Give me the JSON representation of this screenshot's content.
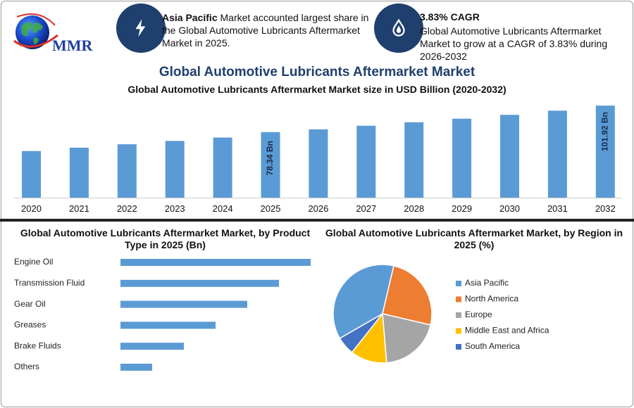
{
  "logo": {
    "text": "MMR"
  },
  "header": {
    "info1": {
      "highlight": "Asia Pacific",
      "rest": " Market accounted largest share in the Global Automotive Lubricants Aftermarket Market in 2025.",
      "icon": "lightning-icon"
    },
    "info2": {
      "title": "3.83% CAGR",
      "text": "Global Automotive Lubricants Aftermarket Market to grow at a CAGR of 3.83% during 2026-2032",
      "icon": "oil-drop-icon"
    }
  },
  "title": "Global Automotive Lubricants Aftermarket Market",
  "subtitle": "Global Automotive Lubricants Aftermarket Market size in USD Billion (2020-2032)",
  "chart_data": [
    {
      "type": "bar",
      "title": "Global Automotive Lubricants Aftermarket Market size in USD Billion (2020-2032)",
      "categories": [
        "2020",
        "2021",
        "2022",
        "2023",
        "2024",
        "2025",
        "2026",
        "2027",
        "2028",
        "2029",
        "2030",
        "2031",
        "2032"
      ],
      "values": [
        61.5,
        64.5,
        67.5,
        70.5,
        73.5,
        78.34,
        80.8,
        84.0,
        87.1,
        90.3,
        93.7,
        97.4,
        101.92
      ],
      "data_labels": [
        {
          "index": 5,
          "text": "78.34 Bn"
        },
        {
          "index": 12,
          "text": "101.92 Bn"
        }
      ],
      "ylim": [
        20,
        102
      ],
      "color": "#5b9bd5",
      "grid": false
    },
    {
      "type": "bar",
      "orientation": "horizontal",
      "title": "Global Automotive Lubricants Aftermarket Market, by Product Type in 2025 (Bn)",
      "categories": [
        "Engine Oil",
        "Transmission Fluid",
        "Gear Oil",
        "Greases",
        "Brake Fluids",
        "Others"
      ],
      "values": [
        6,
        5,
        4,
        3,
        2,
        1
      ],
      "color": "#5b9bd5",
      "grid": false
    },
    {
      "type": "pie",
      "title": "Global Automotive Lubricants Aftermarket Market, by Region in 2025 (%)",
      "labels": [
        "Asia Pacific",
        "North America",
        "Europe",
        "Middle East and Africa",
        "South America"
      ],
      "values": [
        37,
        25,
        20,
        12,
        6
      ],
      "colors": [
        "#5b9bd5",
        "#ed7d31",
        "#a5a5a5",
        "#ffc000",
        "#4472c4"
      ],
      "legend": "right"
    }
  ]
}
